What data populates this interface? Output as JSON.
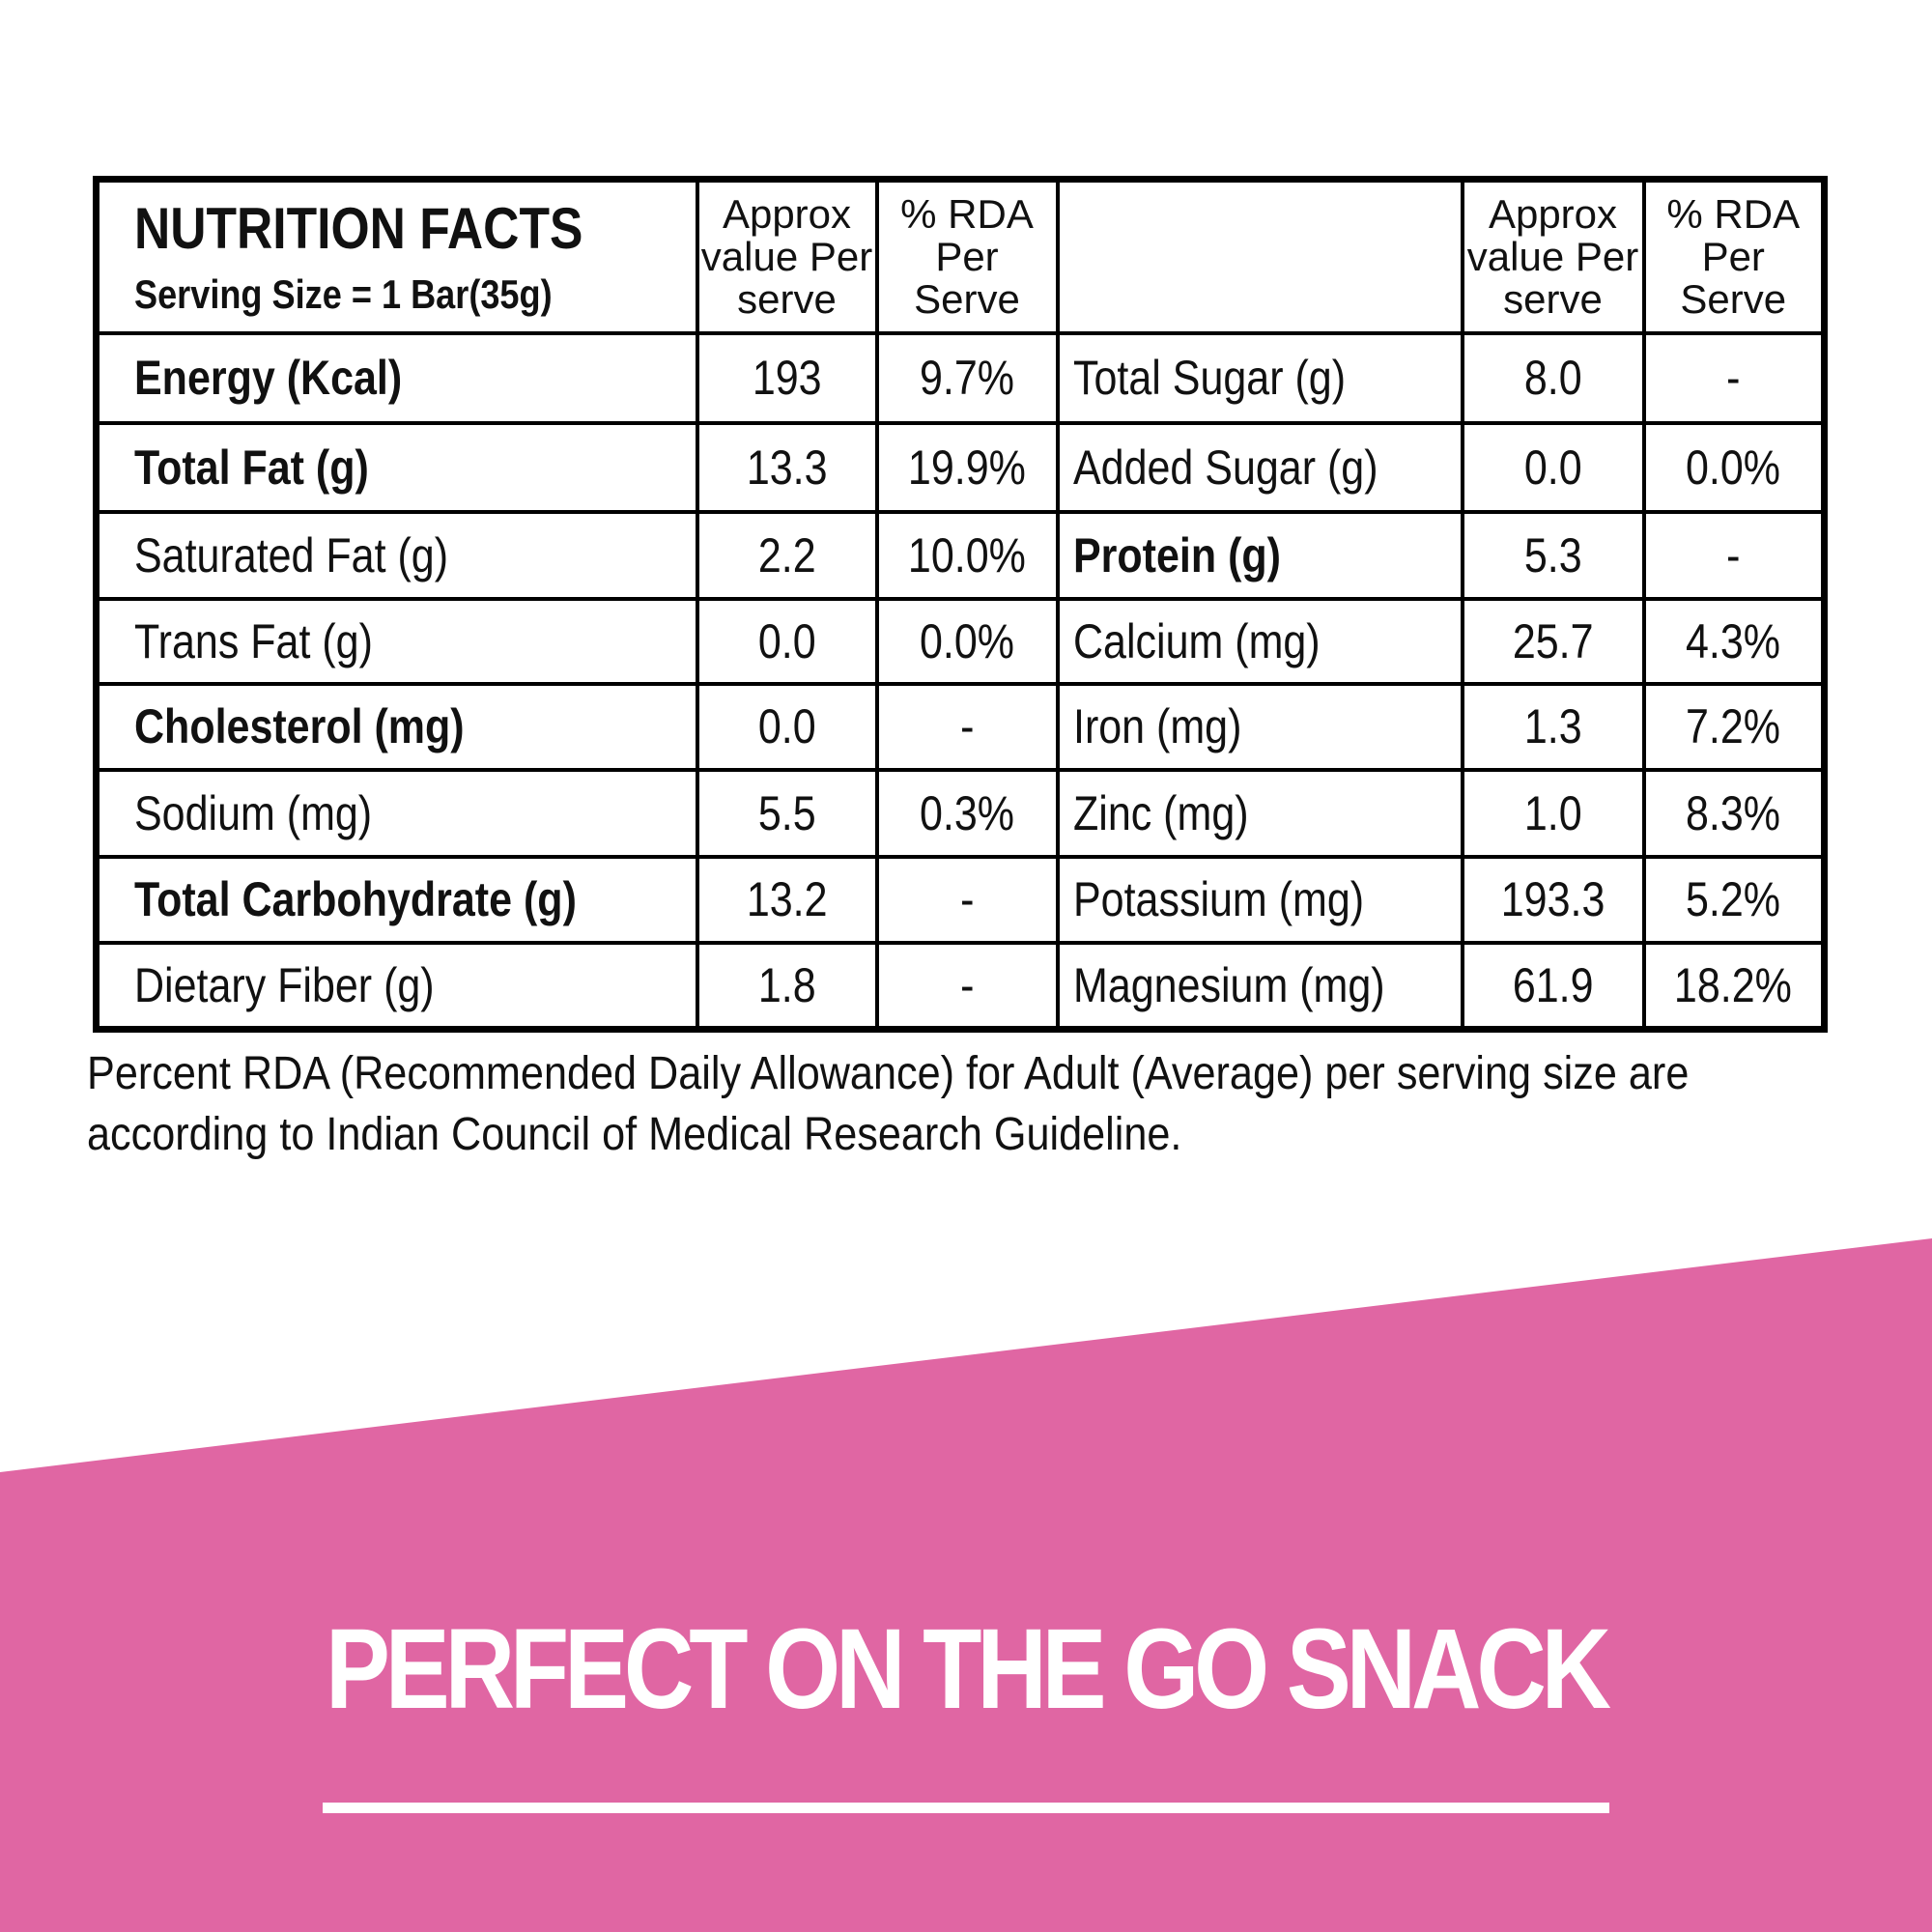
{
  "table": {
    "title": "NUTRITION FACTS",
    "serving_size": "Serving Size = 1 Bar(35g)",
    "headers": [
      "Approx value Per serve",
      "% RDA Per Serve",
      "",
      "Approx value Per serve",
      "% RDA Per Serve"
    ],
    "rows": [
      {
        "left": {
          "name": "Energy (Kcal)",
          "bold": true,
          "value": "193",
          "rda": "9.7%"
        },
        "right": {
          "name": "Total Sugar (g)",
          "bold": false,
          "value": "8.0",
          "rda": "-"
        }
      },
      {
        "left": {
          "name": "Total Fat (g)",
          "bold": true,
          "value": "13.3",
          "rda": "19.9%"
        },
        "right": {
          "name": "Added Sugar (g)",
          "bold": false,
          "value": "0.0",
          "rda": "0.0%"
        }
      },
      {
        "left": {
          "name": "Saturated Fat (g)",
          "bold": false,
          "value": "2.2",
          "rda": "10.0%"
        },
        "right": {
          "name": "Protein (g)",
          "bold": true,
          "value": "5.3",
          "rda": "-"
        }
      },
      {
        "left": {
          "name": "Trans Fat (g)",
          "bold": false,
          "value": "0.0",
          "rda": "0.0%"
        },
        "right": {
          "name": "Calcium (mg)",
          "bold": false,
          "value": "25.7",
          "rda": "4.3%"
        }
      },
      {
        "left": {
          "name": "Cholesterol (mg)",
          "bold": true,
          "value": "0.0",
          "rda": "-"
        },
        "right": {
          "name": "Iron (mg)",
          "bold": false,
          "value": "1.3",
          "rda": "7.2%"
        }
      },
      {
        "left": {
          "name": "Sodium (mg)",
          "bold": false,
          "value": "5.5",
          "rda": "0.3%"
        },
        "right": {
          "name": "Zinc (mg)",
          "bold": false,
          "value": "1.0",
          "rda": "8.3%"
        }
      },
      {
        "left": {
          "name": "Total Carbohydrate (g)",
          "bold": true,
          "value": "13.2",
          "rda": "-"
        },
        "right": {
          "name": "Potassium (mg)",
          "bold": false,
          "value": "193.3",
          "rda": "5.2%"
        }
      },
      {
        "left": {
          "name": "Dietary Fiber (g)",
          "bold": false,
          "value": "1.8",
          "rda": "-"
        },
        "right": {
          "name": "Magnesium (mg)",
          "bold": false,
          "value": "61.9",
          "rda": "18.2%"
        }
      }
    ]
  },
  "footnote": {
    "line1": "Percent RDA (Recommended Daily Allowance) for Adult (Average) per serving size are",
    "line2": "according to Indian Council of Medical Research Guideline."
  },
  "banner": {
    "tagline": "PERFECT ON THE GO SNACK",
    "color": "#e066a3"
  }
}
